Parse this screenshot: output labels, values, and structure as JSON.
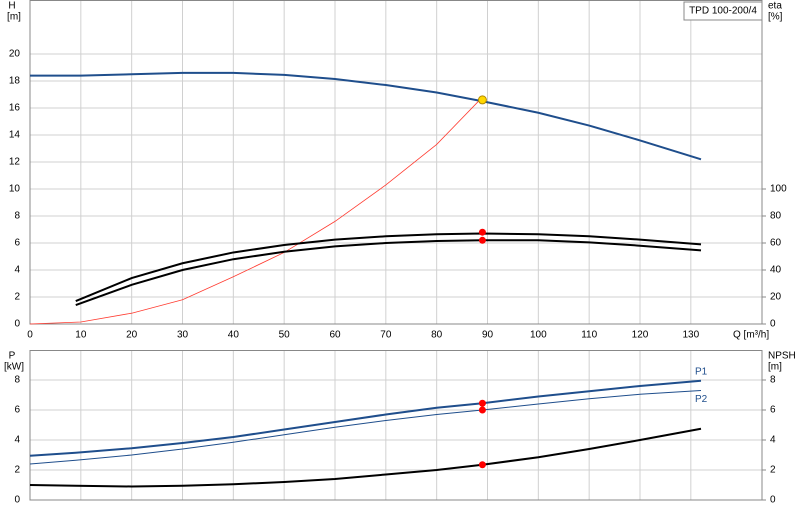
{
  "chart_data": [
    {
      "type": "line",
      "title": "TPD 100-200/4",
      "ylabel": "H",
      "yunit": "[m]",
      "y2label": "eta",
      "y2unit": "[%]",
      "xlabel": "Q [m³/h]",
      "xlim": [
        0,
        144
      ],
      "xticks": [
        0,
        10,
        20,
        30,
        40,
        50,
        60,
        70,
        80,
        90,
        100,
        110,
        120,
        130
      ],
      "ylim": [
        0,
        24
      ],
      "yticks": [
        0,
        2,
        4,
        6,
        8,
        10,
        12,
        14,
        16,
        18,
        20
      ],
      "y2lim": [
        0,
        240
      ],
      "y2ticks": [
        0,
        20,
        40,
        60,
        80,
        100
      ],
      "grid": true,
      "series": [
        {
          "color": "#1f4e8c",
          "width": 2,
          "axis": "y",
          "x": [
            0,
            10,
            20,
            30,
            40,
            50,
            60,
            70,
            80,
            89,
            100,
            110,
            120,
            132
          ],
          "values": [
            18.4,
            18.4,
            18.5,
            18.6,
            18.6,
            18.45,
            18.15,
            17.7,
            17.15,
            16.5,
            15.65,
            14.7,
            13.6,
            12.2
          ]
        },
        {
          "color": "#ff3b30",
          "width": 0.8,
          "axis": "y",
          "x": [
            0,
            10,
            20,
            30,
            40,
            50,
            60,
            70,
            80,
            89
          ],
          "values": [
            0,
            0.15,
            0.8,
            1.8,
            3.5,
            5.3,
            7.6,
            10.3,
            13.3,
            16.8
          ]
        },
        {
          "color": "#000000",
          "width": 2,
          "axis": "y2",
          "x": [
            9,
            20,
            30,
            40,
            50,
            60,
            70,
            80,
            89,
            100,
            110,
            120,
            132
          ],
          "values": [
            17,
            34,
            45,
            53,
            58.5,
            62.5,
            65,
            66.5,
            67,
            66.5,
            65,
            62.5,
            59
          ]
        },
        {
          "color": "#000000",
          "width": 2,
          "axis": "y2",
          "x": [
            9,
            20,
            30,
            40,
            50,
            60,
            70,
            80,
            89,
            100,
            110,
            120,
            132
          ],
          "values": [
            14,
            29,
            40,
            48,
            53.5,
            57.5,
            60,
            61.5,
            62,
            62,
            60.5,
            58,
            54.5
          ]
        }
      ],
      "points": [
        {
          "x": 89,
          "y": 16.6,
          "color": "#ffd700",
          "axis": "y"
        },
        {
          "x": 89,
          "y": 68,
          "color": "#ff0000",
          "axis": "y2"
        },
        {
          "x": 89,
          "y": 62,
          "color": "#ff0000",
          "axis": "y2"
        }
      ]
    },
    {
      "type": "line",
      "ylabel": "P",
      "yunit": "[kW]",
      "y2label": "NPSH",
      "y2unit": "[m]",
      "xlim": [
        0,
        144
      ],
      "xticks": [
        0,
        10,
        20,
        30,
        40,
        50,
        60,
        70,
        80,
        90,
        100,
        110,
        120,
        130
      ],
      "ylim": [
        0,
        10
      ],
      "yticks": [
        0,
        2,
        4,
        6,
        8
      ],
      "y2lim": [
        0,
        10
      ],
      "y2ticks": [
        0,
        2,
        4,
        6,
        8
      ],
      "grid": true,
      "series": [
        {
          "name": "P1",
          "color": "#1f4e8c",
          "width": 2,
          "axis": "y",
          "x": [
            0,
            9,
            20,
            30,
            40,
            50,
            60,
            70,
            80,
            89,
            100,
            110,
            120,
            132
          ],
          "values": [
            2.95,
            3.15,
            3.45,
            3.8,
            4.2,
            4.7,
            5.2,
            5.7,
            6.15,
            6.45,
            6.9,
            7.25,
            7.6,
            7.95
          ]
        },
        {
          "name": "P2",
          "color": "#1f4e8c",
          "width": 1,
          "axis": "y",
          "x": [
            0,
            9,
            20,
            30,
            40,
            50,
            60,
            70,
            80,
            89,
            100,
            110,
            120,
            132
          ],
          "values": [
            2.4,
            2.65,
            3.0,
            3.4,
            3.85,
            4.35,
            4.85,
            5.3,
            5.7,
            6.0,
            6.4,
            6.75,
            7.05,
            7.3
          ]
        },
        {
          "color": "#000000",
          "width": 2,
          "axis": "y2",
          "x": [
            0,
            9,
            20,
            30,
            40,
            50,
            60,
            70,
            80,
            89,
            100,
            110,
            120,
            132
          ],
          "values": [
            1.0,
            0.95,
            0.9,
            0.95,
            1.05,
            1.2,
            1.4,
            1.7,
            2.0,
            2.35,
            2.85,
            3.4,
            4.0,
            4.75
          ]
        }
      ],
      "points": [
        {
          "x": 89,
          "y": 6.45,
          "color": "#ff0000",
          "axis": "y"
        },
        {
          "x": 89,
          "y": 6.0,
          "color": "#ff0000",
          "axis": "y"
        },
        {
          "x": 89,
          "y": 2.35,
          "color": "#ff0000",
          "axis": "y2"
        }
      ]
    }
  ]
}
